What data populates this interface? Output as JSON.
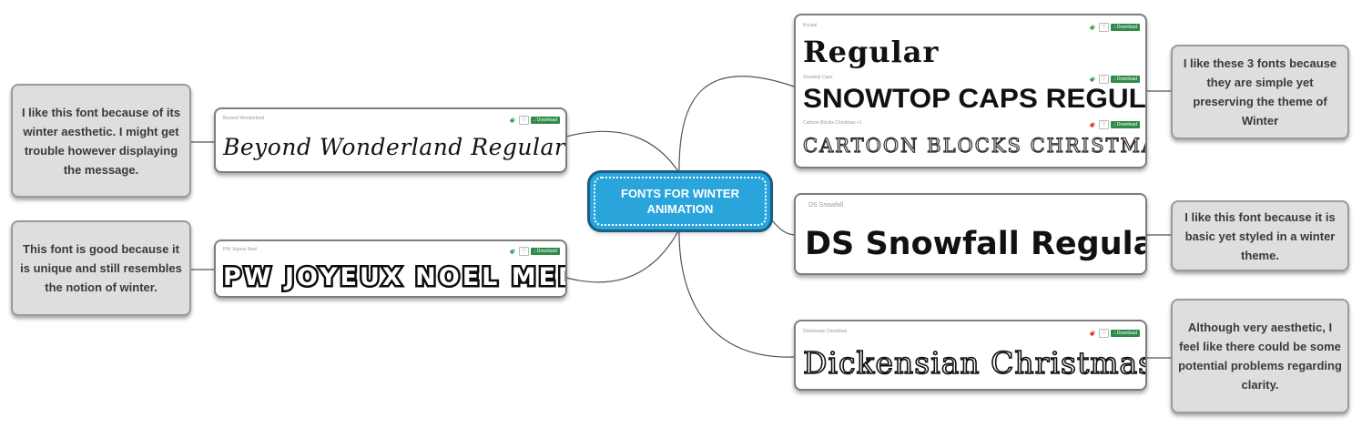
{
  "central": {
    "label": "FONTS FOR WINTER ANIMATION"
  },
  "colors": {
    "central_fill": "#29a5dc",
    "central_border": "#1c5c86",
    "note_fill": "#dedede",
    "download_button": "#2e8b4a",
    "tag_green": "#3aa34a",
    "tag_red": "#d9363e"
  },
  "cards": {
    "beyond": {
      "name": "Beyond Wonderland",
      "preview": "Beyond Wonderland Regular",
      "download": "Download",
      "tag_color": "green"
    },
    "joyeux": {
      "name": "PW Joyeux Noel",
      "preview": "PW JOYEUX NOEL MEDIUM",
      "download": "Download",
      "tag_color": "green"
    },
    "group3": {
      "krystal": {
        "name": "Krystal",
        "preview": "Regular",
        "download": "Download",
        "tag_color": "green"
      },
      "snowtop": {
        "name": "Snowtop Caps",
        "preview": "SNOWTOP CAPS REGULAR",
        "download": "Download",
        "tag_color": "green"
      },
      "cartoon": {
        "name": "Cartoon Blocks Christmas +1",
        "preview": "CARTOON BLOCKS CHRISTMAS",
        "download": "Download",
        "tag_color": "red"
      }
    },
    "ds": {
      "name": "DS Snowfall",
      "preview": "DS Snowfall Regular"
    },
    "dickensian": {
      "name": "Dickensian Christmas",
      "preview": "Dickensian Christmas",
      "download": "Download",
      "tag_color": "red"
    }
  },
  "notes": {
    "beyond": "I like this font because of its winter aesthetic. I might get trouble however displaying the message.",
    "joyeux": "This font is good because it is unique and still resembles the notion of winter.",
    "group3": "I like these 3 fonts because they are simple yet preserving the theme of Winter",
    "ds": "I like this font because it is basic yet styled in a winter theme.",
    "dickensian": "Although very aesthetic, I feel like there could be some potential problems regarding clarity."
  },
  "icons": {
    "tag": "tag-icon",
    "heart": "heart-icon",
    "heart_glyph": "♡",
    "download": "download-icon"
  }
}
